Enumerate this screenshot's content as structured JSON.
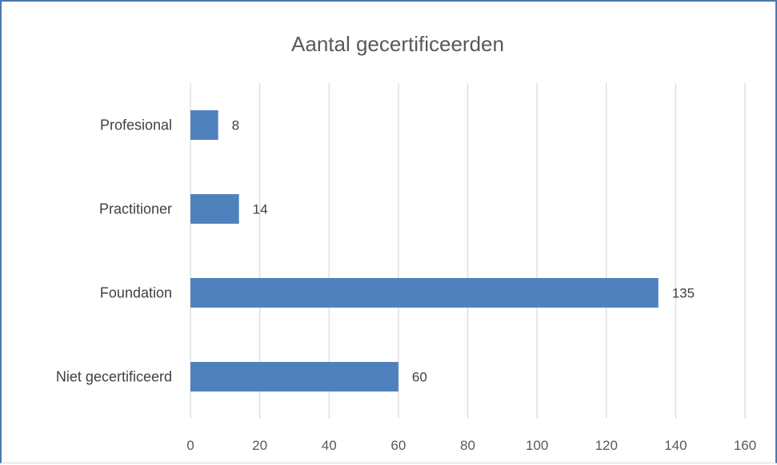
{
  "chart_data": {
    "type": "bar",
    "orientation": "horizontal",
    "title": "Aantal gecertificeerden",
    "categories": [
      "Profesional",
      "Practitioner",
      "Foundation",
      "Niet gecertificeerd"
    ],
    "values": [
      8,
      14,
      135,
      60
    ],
    "xlim": [
      0,
      160
    ],
    "xticks": [
      0,
      20,
      40,
      60,
      80,
      100,
      120,
      140,
      160
    ],
    "grid": "vertical",
    "data_labels": true,
    "bar_color": "#4f81bd"
  }
}
